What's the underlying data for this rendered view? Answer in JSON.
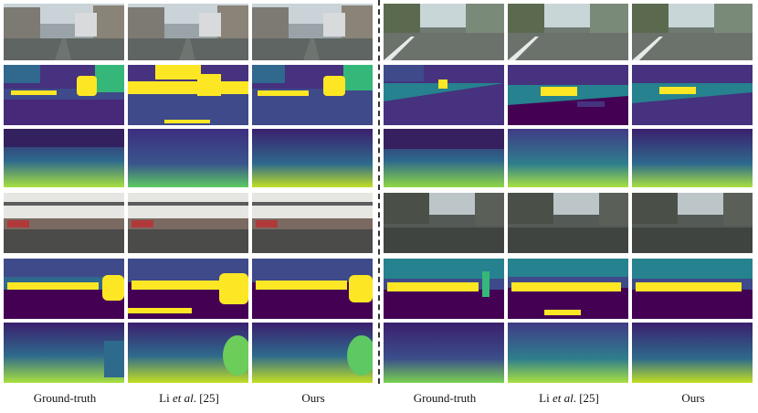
{
  "figure": {
    "captions": [
      {
        "pre": "Ground-truth",
        "em": "",
        "post": ""
      },
      {
        "pre": "Li ",
        "em": "et al",
        "post": ". [25]"
      },
      {
        "pre": "Ours",
        "em": "",
        "post": ""
      },
      {
        "pre": "Ground-truth",
        "em": "",
        "post": ""
      },
      {
        "pre": "Li ",
        "em": "et al",
        "post": ". [25]"
      },
      {
        "pre": "Ours",
        "em": "",
        "post": ""
      }
    ],
    "row_kinds": [
      "rgb",
      "segmentation",
      "depth",
      "rgb",
      "segmentation",
      "depth"
    ],
    "colors": {
      "seg_purple": "#46327e",
      "seg_dark": "#440154",
      "seg_teal": "#26828e",
      "seg_green": "#35b779",
      "seg_yellow": "#fde725",
      "depth_dark": "#3b1f6e",
      "depth_bright": "#a8e040"
    }
  }
}
